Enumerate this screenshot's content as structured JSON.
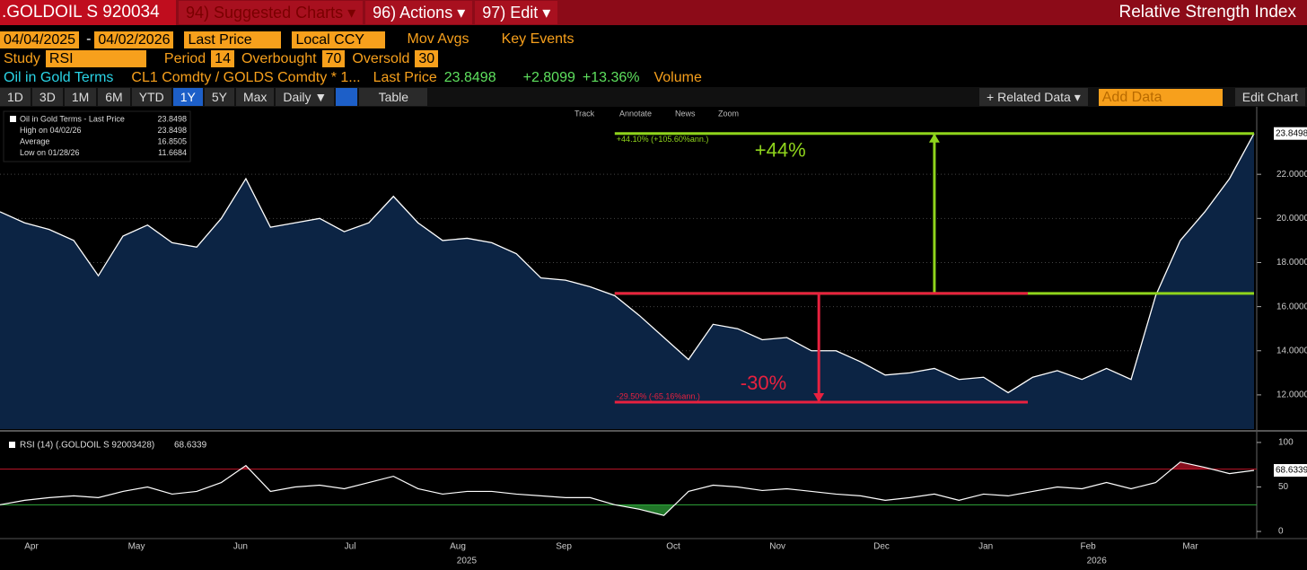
{
  "ui": {
    "ticker": ".GOLDOIL S 920034",
    "menu": [
      "94) Suggested Charts ▾",
      "96) Actions ▾",
      "97) Edit ▾"
    ],
    "window_title": "Relative Strength Index",
    "start_date": "04/04/2025",
    "end_date": "04/02/2026",
    "date_sep": "-",
    "field": "Last Price",
    "currency": "Local CCY",
    "mov_avgs": "Mov Avgs",
    "key_events": "Key Events",
    "study_label": "Study",
    "study": "RSI",
    "period_label": "Period",
    "period": 14,
    "overbought_label": "Overbought",
    "oversold_label": "Oversold",
    "security_name": "Oil in Gold Terms",
    "formula": "CL1 Comdty / GOLDS Comdty * 1...",
    "last_price_label": "Last Price",
    "change": "+2.8099",
    "change_pct": "+13.36%",
    "volume": "Volume",
    "ranges": [
      "1D",
      "3D",
      "1M",
      "6M",
      "YTD",
      "1Y",
      "5Y",
      "Max"
    ],
    "frequency": "Daily ▼",
    "table": "Table",
    "related": "+ Related Data ▾",
    "add_data": "Add Data",
    "edit_chart": "Edit Chart",
    "tools": [
      "Track",
      "Annotate",
      "News",
      "Zoom"
    ]
  },
  "chart_data": [
    {
      "type": "area",
      "series_name": "Oil in Gold Terms - Last Price",
      "color": "#ffffff",
      "fill": "#0c2444",
      "values": [
        20.3,
        19.8,
        19.5,
        19.0,
        17.4,
        19.2,
        19.7,
        18.9,
        18.7,
        20.0,
        21.8,
        19.6,
        19.8,
        20.0,
        19.4,
        19.8,
        21.0,
        19.8,
        19.0,
        19.1,
        18.9,
        18.4,
        17.3,
        17.2,
        16.9,
        16.5,
        15.6,
        14.6,
        13.6,
        15.2,
        15.0,
        14.5,
        14.6,
        14.0,
        14.0,
        13.5,
        12.9,
        13.0,
        13.2,
        12.7,
        12.8,
        12.1,
        12.8,
        13.1,
        12.7,
        13.2,
        12.7,
        16.5,
        19.0,
        20.3,
        21.8,
        23.8498
      ],
      "xlim": [
        0,
        51
      ],
      "ylim": [
        10.45,
        25.1
      ],
      "yticks": [
        {
          "value": 12,
          "label": "12.0000"
        },
        {
          "value": 14,
          "label": "14.0000"
        },
        {
          "value": 16,
          "label": "16.0000"
        },
        {
          "value": 18,
          "label": "18.0000"
        },
        {
          "value": 20,
          "label": "20.0000"
        },
        {
          "value": 22,
          "label": "22.0000"
        }
      ],
      "grid": true,
      "legend": {
        "high_label": "High on 04/02/26",
        "average_label": "Average",
        "average": 16.8505,
        "low_label": "Low on 01/28/26",
        "low": 11.6684
      },
      "annotations": [
        {
          "text": "+44%",
          "detail": "+44.10% (+105.60%ann.)",
          "color": "#8fd41c",
          "x_start": 25,
          "x_end": 51,
          "arrow_x": 38,
          "from": 16.6,
          "to": 23.8498
        },
        {
          "text": "-30%",
          "detail": "-29.50% (-65.16%ann.)",
          "color": "#e8213f",
          "x_start": 25,
          "x_end": 41.8,
          "arrow_x": 33.3,
          "from": 16.6,
          "to": 11.6684
        }
      ]
    },
    {
      "type": "line",
      "title": "RSI (14) (.GOLDOIL S 92003428)",
      "color": "#ffffff",
      "values": [
        30,
        35,
        38,
        40,
        38,
        45,
        50,
        42,
        45,
        55,
        74,
        45,
        50,
        52,
        48,
        55,
        62,
        48,
        42,
        45,
        45,
        42,
        40,
        38,
        38,
        30,
        25,
        18,
        45,
        52,
        50,
        46,
        48,
        45,
        42,
        40,
        35,
        38,
        42,
        35,
        42,
        40,
        45,
        50,
        48,
        55,
        48,
        55,
        78,
        72,
        65,
        68.6339
      ],
      "xlim": [
        0,
        51
      ],
      "ylim": [
        -8,
        111
      ],
      "yticks": [
        0,
        50,
        100
      ],
      "overbought": 70,
      "oversold": 30,
      "overbought_color": "#c0142a",
      "oversold_color": "#2fa83a",
      "xticks": [
        {
          "value": 1.28,
          "label": "Apr"
        },
        {
          "value": 5.55,
          "label": "May"
        },
        {
          "value": 9.78,
          "label": "Jun"
        },
        {
          "value": 14.24,
          "label": "Jul"
        },
        {
          "value": 18.62,
          "label": "Aug"
        },
        {
          "value": 22.93,
          "label": "Sep"
        },
        {
          "value": 27.38,
          "label": "Oct"
        },
        {
          "value": 31.62,
          "label": "Nov"
        },
        {
          "value": 35.85,
          "label": "Dec"
        },
        {
          "value": 40.09,
          "label": "Jan"
        },
        {
          "value": 44.25,
          "label": "Feb"
        },
        {
          "value": 48.41,
          "label": "Mar"
        }
      ],
      "year_ticks": [
        {
          "value": 18.98,
          "label": "2025"
        },
        {
          "value": 44.6,
          "label": "2026"
        }
      ]
    }
  ]
}
